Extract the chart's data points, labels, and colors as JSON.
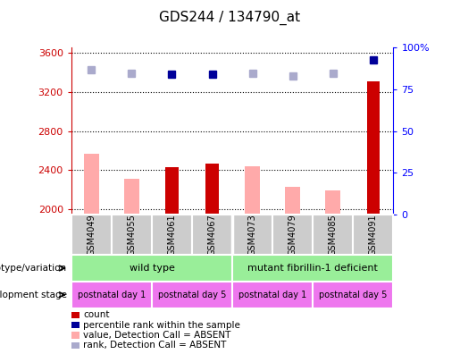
{
  "title": "GDS244 / 134790_at",
  "samples": [
    "GSM4049",
    "GSM4055",
    "GSM4061",
    "GSM4067",
    "GSM4073",
    "GSM4079",
    "GSM4085",
    "GSM4091"
  ],
  "count_values": [
    null,
    null,
    2430,
    2470,
    null,
    null,
    null,
    3310
  ],
  "absent_values": [
    2570,
    2310,
    null,
    null,
    2440,
    2230,
    2190,
    null
  ],
  "percentile_dark": [
    null,
    null,
    3380,
    3380,
    null,
    null,
    null,
    3530
  ],
  "percentile_absent": [
    3430,
    3390,
    null,
    null,
    3390,
    3360,
    3390,
    null
  ],
  "ylim_left": [
    1950,
    3650
  ],
  "ylim_right": [
    0,
    100
  ],
  "yticks_left": [
    2000,
    2400,
    2800,
    3200,
    3600
  ],
  "yticks_right": [
    0,
    25,
    50,
    75,
    100
  ],
  "right_tick_labels": [
    "0",
    "25",
    "50",
    "75",
    "100%"
  ],
  "color_count": "#cc0000",
  "color_absent_bar": "#ffaaaa",
  "color_percentile_dark": "#000099",
  "color_percentile_absent": "#aaaacc",
  "color_sample_bg": "#cccccc",
  "color_geno_green": "#99ee99",
  "color_stage_purple": "#ee77ee",
  "genotype_groups": [
    {
      "label": "wild type",
      "start": 0,
      "end": 3
    },
    {
      "label": "mutant fibrillin-1 deficient",
      "start": 4,
      "end": 7
    }
  ],
  "stage_groups": [
    {
      "label": "postnatal day 1",
      "start": 0,
      "end": 1
    },
    {
      "label": "postnatal day 5",
      "start": 2,
      "end": 3
    },
    {
      "label": "postnatal day 1",
      "start": 4,
      "end": 5
    },
    {
      "label": "postnatal day 5",
      "start": 6,
      "end": 7
    }
  ],
  "legend_items": [
    {
      "color": "#cc0000",
      "label": "count"
    },
    {
      "color": "#000099",
      "label": "percentile rank within the sample"
    },
    {
      "color": "#ffaaaa",
      "label": "value, Detection Call = ABSENT"
    },
    {
      "color": "#aaaacc",
      "label": "rank, Detection Call = ABSENT"
    }
  ],
  "fig_width": 5.15,
  "fig_height": 3.96,
  "dpi": 100
}
